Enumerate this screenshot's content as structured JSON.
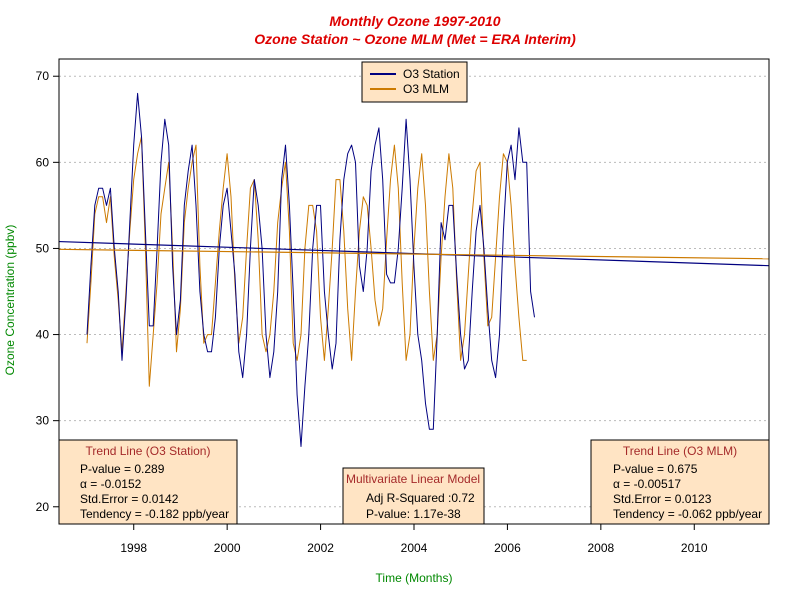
{
  "chart_data": {
    "type": "line",
    "title": "Monthly Ozone 1997-2010",
    "subtitle": "Ozone Station ~ Ozone MLM (Met = ERA Interim)",
    "xlabel": "Time (Months)",
    "ylabel": "Ozone Concentration (ppbv)",
    "xlim": [
      1996.4,
      2011.6
    ],
    "ylim": [
      18,
      72
    ],
    "x_ticks": [
      1998,
      2000,
      2002,
      2004,
      2006,
      2008,
      2010
    ],
    "y_ticks": [
      20,
      30,
      40,
      50,
      60,
      70
    ],
    "grid": "horizontal dotted",
    "legend_position": "top-center",
    "x_start": 1997.0,
    "x_step": 0.0833,
    "colors": {
      "station": "#000080",
      "mlm": "#CC7A00",
      "title": "#DD0000",
      "axis_label": "#008800",
      "box_title": "#A52A2A",
      "box_fill": "#FFE4C4"
    },
    "series": [
      {
        "name": "O3 Station",
        "color": "#000080",
        "values": [
          40,
          48,
          55,
          57,
          57,
          55,
          57,
          50,
          45,
          37,
          44,
          53,
          62,
          68,
          63,
          52,
          41,
          41,
          50,
          60,
          65,
          62,
          48,
          40,
          44,
          55,
          59,
          62,
          55,
          45,
          40,
          38,
          38,
          42,
          50,
          55,
          57,
          52,
          47,
          38,
          35,
          40,
          50,
          58,
          55,
          50,
          40,
          35,
          38,
          45,
          58,
          62,
          55,
          45,
          33,
          27,
          34,
          40,
          50,
          55,
          55,
          45,
          40,
          36,
          39,
          51,
          58,
          61,
          62,
          60,
          48,
          45,
          50,
          59,
          62,
          64,
          58,
          47,
          46,
          46,
          50,
          57,
          65,
          58,
          48,
          40,
          37,
          32,
          29,
          29,
          40,
          53,
          51,
          55,
          55,
          47,
          40,
          36,
          37,
          45,
          52,
          55,
          50,
          43,
          37,
          35,
          40,
          52,
          60,
          62,
          58,
          64,
          60,
          60,
          45,
          42
        ],
        "trend": [
          50.8,
          48.0
        ]
      },
      {
        "name": "O3 MLM",
        "color": "#CC7A00",
        "values": [
          39,
          46,
          54,
          56,
          56,
          53,
          56,
          49,
          44,
          38,
          45,
          52,
          58,
          61,
          63,
          50,
          34,
          40,
          46,
          54,
          57,
          60,
          50,
          38,
          43,
          53,
          57,
          60,
          62,
          48,
          39,
          40,
          40,
          46,
          52,
          57,
          61,
          56,
          46,
          39,
          42,
          50,
          57,
          58,
          51,
          40,
          38,
          40,
          45,
          53,
          57,
          60,
          52,
          39,
          37,
          40,
          50,
          55,
          55,
          52,
          42,
          37,
          43,
          50,
          58,
          58,
          52,
          43,
          37,
          45,
          52,
          56,
          55,
          50,
          44,
          41,
          43,
          51,
          58,
          62,
          57,
          46,
          37,
          40,
          50,
          57,
          61,
          55,
          45,
          37,
          40,
          49,
          56,
          61,
          57,
          46,
          37,
          40,
          47,
          54,
          59,
          60,
          49,
          41,
          42,
          49,
          56,
          61,
          60,
          55,
          48,
          42,
          37,
          37
        ],
        "trend": [
          49.9,
          48.8
        ]
      }
    ],
    "annotations": {
      "station_box": {
        "title": "Trend Line (O3 Station)",
        "lines": [
          "P-value = 0.289",
          "α = -0.0152",
          "Std.Error = 0.0142",
          "Tendency = -0.182 ppb/year"
        ]
      },
      "model_box": {
        "title": "Multivariate Linear Model",
        "lines": [
          "Adj R-Squared :0.72",
          "P-value: 1.17e-38"
        ]
      },
      "mlm_box": {
        "title": "Trend Line (O3 MLM)",
        "lines": [
          "P-value = 0.675",
          "α = -0.00517",
          "Std.Error = 0.0123",
          "Tendency = -0.062 ppb/year"
        ]
      }
    }
  }
}
